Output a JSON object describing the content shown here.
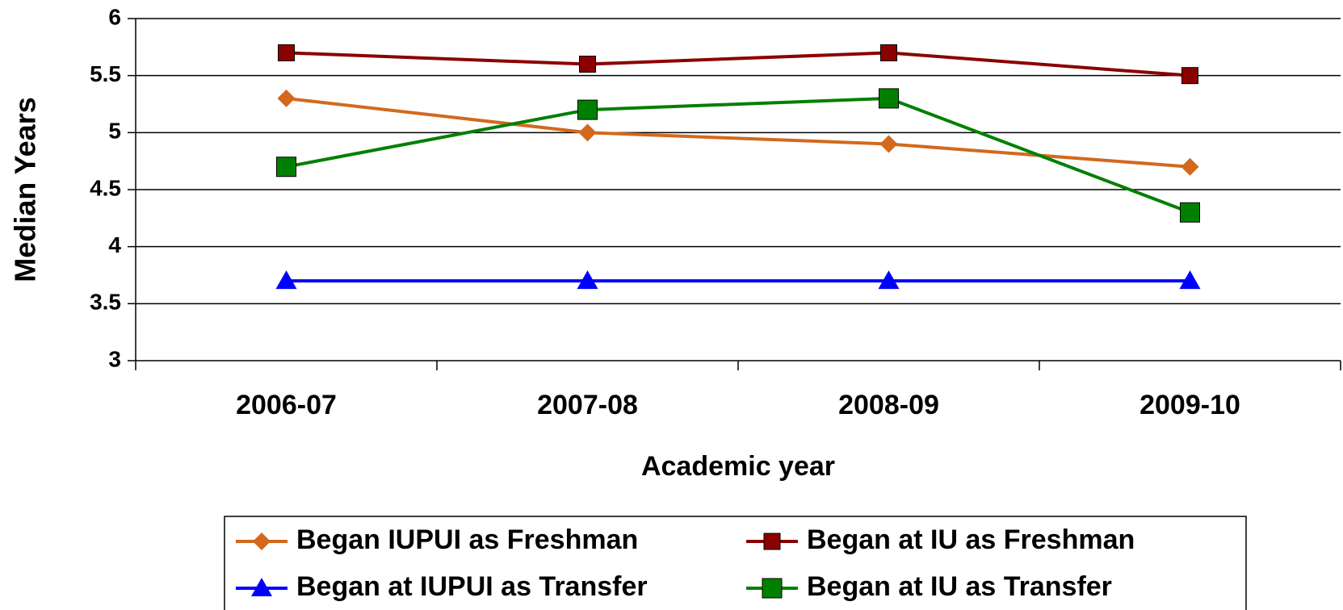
{
  "chart_data": {
    "type": "line",
    "x_label": "Academic year",
    "y_label": "Median Years",
    "categories": [
      "2006-07",
      "2007-08",
      "2008-09",
      "2009-10"
    ],
    "series": [
      {
        "name": "Began IUPUI as Freshman",
        "color": "#D2691E",
        "marker": "diamond",
        "values": [
          5.3,
          5.0,
          4.9,
          4.7
        ]
      },
      {
        "name": "Began at IU as Freshman",
        "color": "#8B0000",
        "marker": "square",
        "values": [
          5.7,
          5.6,
          5.7,
          5.5
        ]
      },
      {
        "name": "Began at IUPUI as Transfer",
        "color": "#0000FF",
        "marker": "triangle",
        "values": [
          3.7,
          3.7,
          3.7,
          3.7
        ]
      },
      {
        "name": "Began at IU as Transfer",
        "color": "#008000",
        "marker": "bigsquare",
        "values": [
          4.7,
          5.2,
          5.3,
          4.3
        ]
      }
    ],
    "ylim": [
      3,
      6
    ],
    "yticks": [
      3,
      3.5,
      4,
      4.5,
      5,
      5.5,
      6
    ],
    "grid": true,
    "legend": "bottom"
  }
}
